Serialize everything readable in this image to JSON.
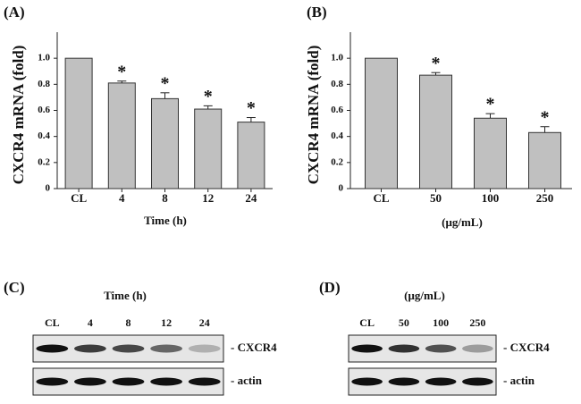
{
  "chart_data": [
    {
      "type": "bar",
      "panel": "(A)",
      "y_label": "CXCR4 mRNA (fold)",
      "x_label": "Time (h)",
      "categories": [
        "CL",
        "4",
        "8",
        "12",
        "24"
      ],
      "values": [
        1.0,
        0.81,
        0.69,
        0.61,
        0.51
      ],
      "errors": [
        0,
        0.015,
        0.045,
        0.025,
        0.035
      ],
      "significance": [
        null,
        "*",
        "*",
        "*",
        "*"
      ],
      "color": "#c0c0c0",
      "ylim": [
        0,
        1.2
      ],
      "yticks": [
        0,
        0.2,
        0.4,
        0.6,
        0.8,
        {
          "value": 1,
          "label": "1.0"
        }
      ]
    },
    {
      "type": "bar",
      "panel": "(B)",
      "y_label": "CXCR4 mRNA (fold)",
      "x_label": "(μg/mL)",
      "categories": [
        "CL",
        "50",
        "100",
        "250"
      ],
      "values": [
        1.0,
        0.87,
        0.54,
        0.43
      ],
      "errors": [
        0,
        0.02,
        0.035,
        0.045
      ],
      "significance": [
        null,
        "*",
        "*",
        "*"
      ],
      "color": "#c0c0c0",
      "ylim": [
        0,
        1.2
      ],
      "yticks": [
        0,
        0.2,
        0.4,
        0.6,
        0.8,
        {
          "value": 1,
          "label": "1.0"
        }
      ]
    }
  ],
  "blots": [
    {
      "panel": "(C)",
      "title": "Time (h)",
      "lanes": [
        "CL",
        "4",
        "8",
        "12",
        "24"
      ],
      "rows": [
        {
          "name": "- CXCR4",
          "intensities": [
            1,
            0.8,
            0.75,
            0.6,
            0.25
          ]
        },
        {
          "name": "- actin",
          "intensities": [
            1,
            1,
            1,
            1,
            1
          ]
        }
      ]
    },
    {
      "panel": "(D)",
      "title": "(μg/mL)",
      "lanes": [
        "CL",
        "50",
        "100",
        "250"
      ],
      "rows": [
        {
          "name": "- CXCR4",
          "intensities": [
            1,
            0.85,
            0.7,
            0.35
          ]
        },
        {
          "name": "- actin",
          "intensities": [
            1,
            1,
            1,
            1
          ]
        }
      ]
    }
  ]
}
